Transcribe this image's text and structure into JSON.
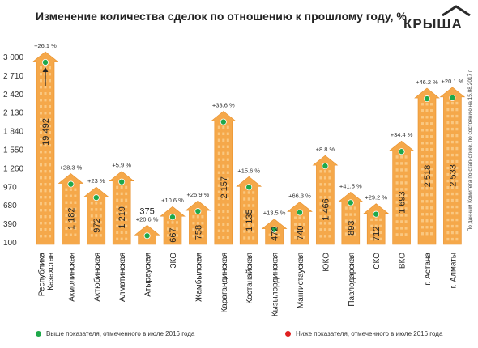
{
  "title": "Изменение количества сделок по отношению к прошлому году, %",
  "logo": {
    "text": "КРЫША",
    "icon": "house-roof-icon"
  },
  "note": "По данным Комитета по статистике, по состоянию на 15.08.2017 г.",
  "legend": [
    {
      "label": "Выше показателя, отмеченного в июле 2016 года",
      "color": "#1ea84a"
    },
    {
      "label": "Ниже показателя, отмеченного в июле 2016 года",
      "color": "#e02020"
    }
  ],
  "colors": {
    "bar": "#f5a84a",
    "bar_edge": "#e8902c",
    "window": "#fbcf8e",
    "above": "#1ea84a"
  },
  "chart_data": {
    "type": "bar",
    "yticks": [
      100,
      390,
      680,
      970,
      1260,
      1550,
      1840,
      2130,
      2420,
      2710,
      3000
    ],
    "ytick_labels": [
      "100",
      "390",
      "680",
      "970",
      "1 260",
      "1 550",
      "1 840",
      "2 130",
      "2 420",
      "2 710",
      "3 000"
    ],
    "ylim": [
      100,
      3000
    ],
    "categories": [
      "Республика Казахстан",
      "Акмолинская",
      "Актюбинская",
      "Алматинская",
      "Атырауская",
      "ЗКО",
      "Жамбылская",
      "Карагандинская",
      "Костанайская",
      "Кызылординская",
      "Мангистауская",
      "ЮКО",
      "Павлодарская",
      "СКО",
      "ВКО",
      "г. Астана",
      "г. Алматы"
    ],
    "category_lines": [
      [
        "Республика",
        "Казахстан"
      ],
      [
        "Акмолинская"
      ],
      [
        "Актюбинская"
      ],
      [
        "Алматинская"
      ],
      [
        "Атырауская"
      ],
      [
        "ЗКО"
      ],
      [
        "Жамбылская"
      ],
      [
        "Карагандинская"
      ],
      [
        "Костанайская"
      ],
      [
        "Кызылординская"
      ],
      [
        "Мангистауская"
      ],
      [
        "ЮКО"
      ],
      [
        "Павлодарская"
      ],
      [
        "СКО"
      ],
      [
        "ВКО"
      ],
      [
        "г. Астана"
      ],
      [
        "г. Алматы"
      ]
    ],
    "values": [
      19492,
      1182,
      972,
      1219,
      375,
      667,
      758,
      2157,
      1135,
      472,
      740,
      1466,
      893,
      712,
      1693,
      2518,
      2533
    ],
    "value_labels": [
      "19 492",
      "1 182",
      "972",
      "1 219",
      "375",
      "667",
      "758",
      "2 157",
      "1 135",
      "472",
      "740",
      "1 466",
      "893",
      "712",
      "1 693",
      "2 518",
      "2 533"
    ],
    "changes": [
      "+26.1 %",
      "+28.3 %",
      "+23 %",
      "+5.9 %",
      "+20.6 %",
      "+10.6 %",
      "+25.9 %",
      "+33.6 %",
      "+15.6 %",
      "+13.5 %",
      "+66.3 %",
      "+8.8 %",
      "+41.5 %",
      "+29.2 %",
      "+34.4 %",
      "+46.2 %",
      "+20.1 %"
    ],
    "indicators": [
      "above",
      "above",
      "above",
      "above",
      "above",
      "above",
      "above",
      "above",
      "above",
      "above",
      "above",
      "above",
      "above",
      "above",
      "above",
      "above",
      "above"
    ],
    "overflow": [
      true,
      false,
      false,
      false,
      false,
      false,
      false,
      false,
      false,
      false,
      false,
      false,
      false,
      false,
      false,
      false,
      false
    ]
  }
}
